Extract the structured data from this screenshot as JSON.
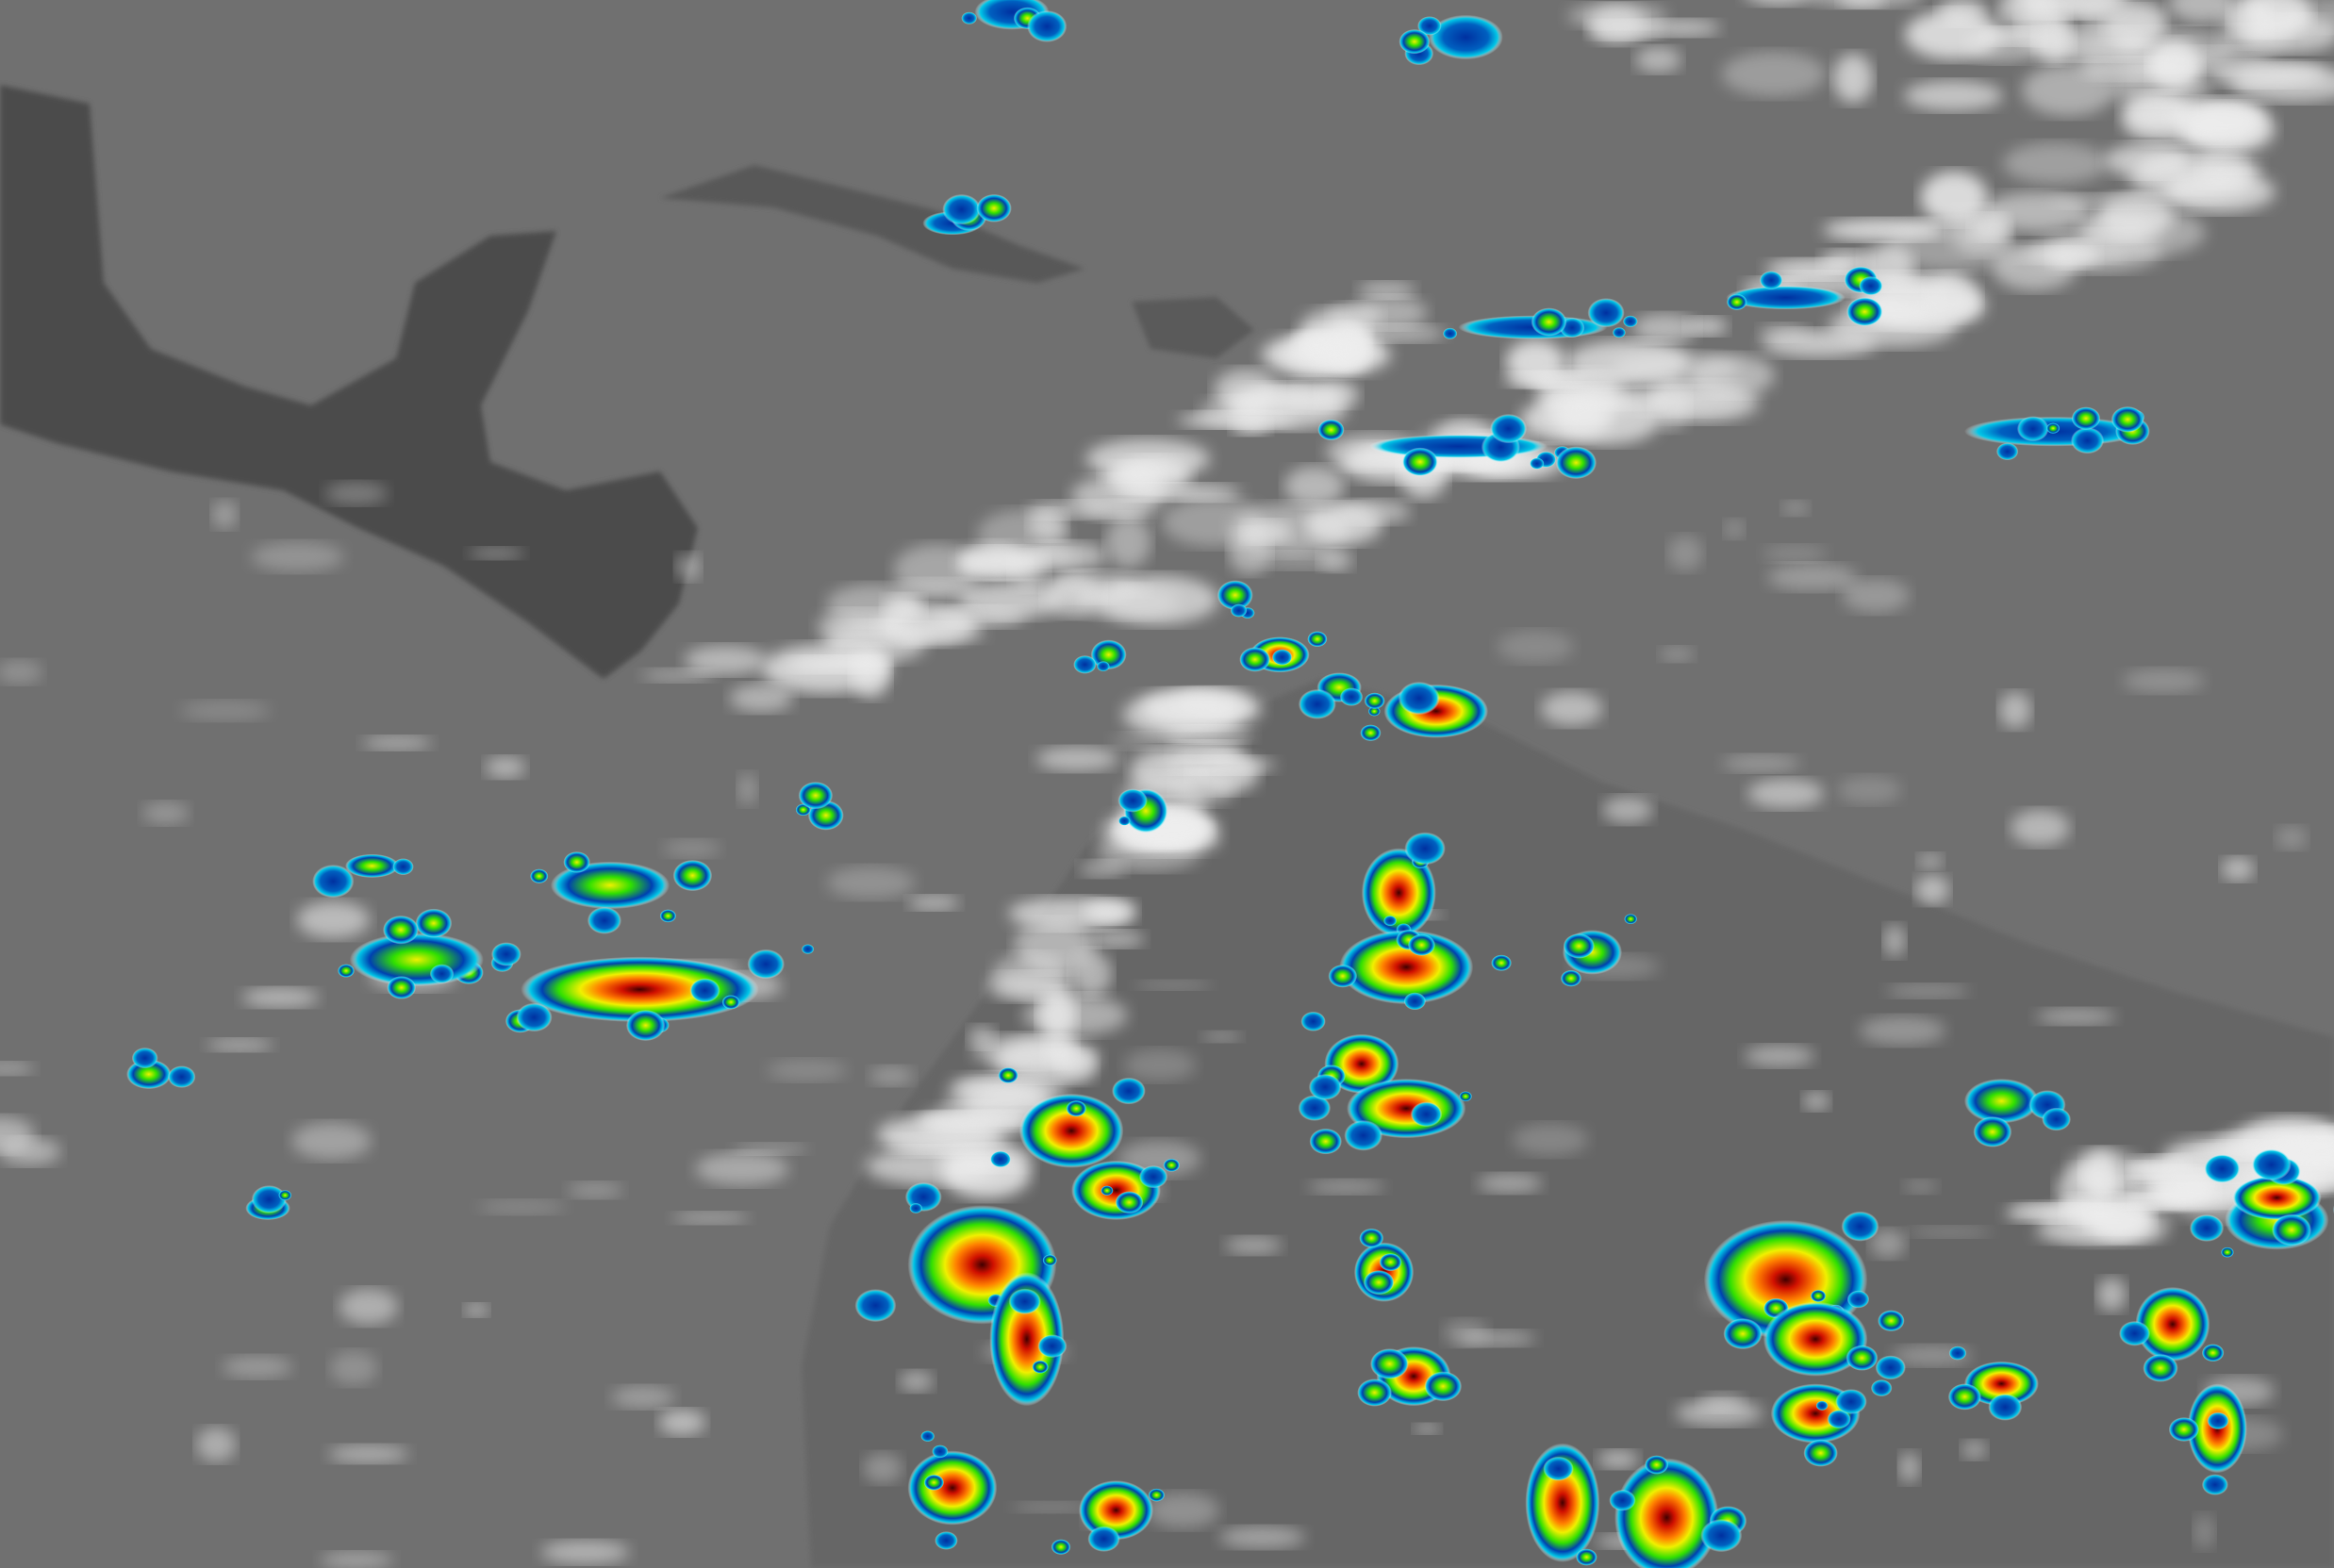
{
  "image": {
    "kind": "infrared satellite imagery",
    "colors": {
      "ocean": "#707070",
      "land": "#4a4a4a",
      "cloud": "#f0f0f0",
      "cold_edge": "#00c8e8",
      "blue": "#0030a0",
      "green": "#30e000",
      "yellow": "#f0f000",
      "red": "#d01000",
      "core": "#300000"
    }
  }
}
